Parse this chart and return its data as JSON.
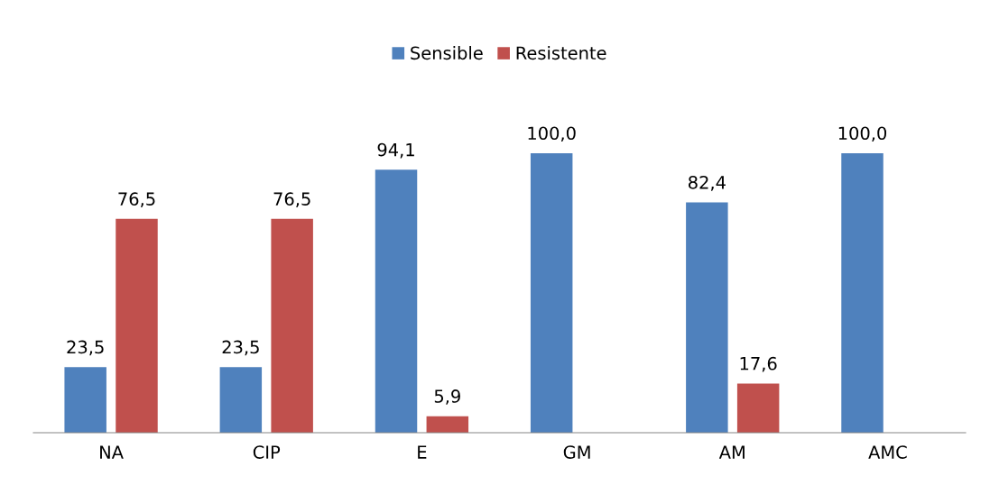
{
  "chart_data": {
    "type": "bar",
    "categories": [
      "NA",
      "CIP",
      "E",
      "GM",
      "AM",
      "AMC"
    ],
    "series": [
      {
        "name": "Sensible",
        "color": "#4f81bd",
        "values": [
          23.5,
          23.5,
          94.1,
          100.0,
          82.4,
          100.0
        ],
        "value_labels": [
          "23,5",
          "23,5",
          "94,1",
          "100,0",
          "82,4",
          "100,0"
        ]
      },
      {
        "name": "Resistente",
        "color": "#c0504d",
        "values": [
          76.5,
          76.5,
          5.9,
          null,
          17.6,
          null
        ],
        "value_labels": [
          "76,5",
          "76,5",
          "5,9",
          null,
          "17,6",
          null
        ]
      }
    ],
    "legend": "top",
    "grid": false
  }
}
